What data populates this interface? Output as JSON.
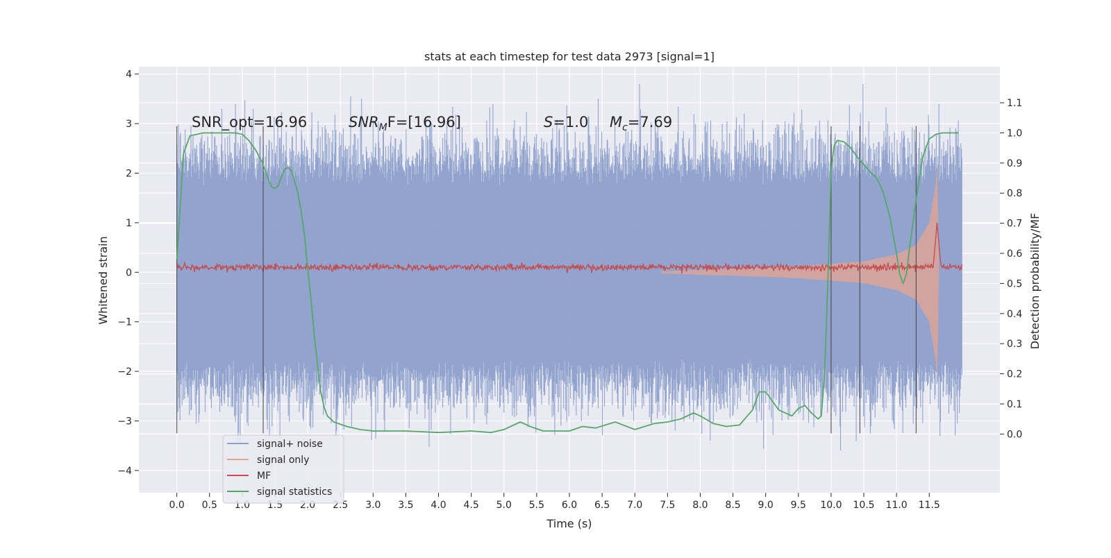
{
  "chart_data": {
    "type": "line",
    "title": "stats at each timestep for test data 2973 [signal=1]",
    "xlabel": "Time (s)",
    "ylabel": "Whitened strain",
    "y2label": "Detection probability/MF",
    "xlim": [
      -0.58,
      12.58
    ],
    "ylim": [
      -4.45,
      4.15
    ],
    "y2lim": [
      -0.195,
      1.22
    ],
    "x_ticks": [
      0.0,
      0.5,
      1.0,
      1.5,
      2.0,
      2.5,
      3.0,
      3.5,
      4.0,
      4.5,
      5.0,
      5.5,
      6.0,
      6.5,
      7.0,
      7.5,
      8.0,
      8.5,
      9.0,
      9.5,
      10.0,
      10.5,
      11.0,
      11.5
    ],
    "x_tick_labels": [
      "0.0",
      "0.5",
      "1.0",
      "1.5",
      "2.0",
      "2.5",
      "3.0",
      "3.5",
      "4.0",
      "4.5",
      "5.0",
      "5.5",
      "6.0",
      "6.5",
      "7.0",
      "7.5",
      "8.0",
      "8.5",
      "9.0",
      "9.5",
      "10.0",
      "10.5",
      "11.0",
      "11.5"
    ],
    "y_ticks": [
      -4,
      -3,
      -2,
      -1,
      0,
      1,
      2,
      3,
      4
    ],
    "y_tick_labels": [
      "−4",
      "−3",
      "−2",
      "−1",
      "0",
      "1",
      "2",
      "3",
      "4"
    ],
    "y2_ticks": [
      0.0,
      0.1,
      0.2,
      0.3,
      0.4,
      0.5,
      0.6,
      0.7,
      0.8,
      0.9,
      1.0,
      1.1
    ],
    "y2_tick_labels": [
      "0.0",
      "0.1",
      "0.2",
      "0.3",
      "0.4",
      "0.5",
      "0.6",
      "0.7",
      "0.8",
      "0.9",
      "1.0",
      "1.1"
    ],
    "grid": true,
    "legend_position": "lower-left",
    "annotations": {
      "snr_opt": "SNR_opt=16.96",
      "snr_mf_prefix": "SNR",
      "snr_mf_sub": "M",
      "snr_mf_suffix": "F=[16.96]",
      "s_sym": "S",
      "s_val": "=1.0",
      "mc_sym": "M",
      "mc_sub": "c",
      "mc_val": "=7.69"
    },
    "vlines_x": [
      0.0,
      1.32,
      10.0,
      10.44,
      11.3
    ],
    "vline_y_range": [
      -3.25,
      2.95
    ],
    "series": [
      {
        "name": "signal+ noise",
        "color": "#8da0cb",
        "axis": "left",
        "x_range": [
          0.0,
          12.0
        ],
        "envelope_amplitude_std": 1.0,
        "envelope_max": 3.8
      },
      {
        "name": "signal only",
        "color": "#e5a48f",
        "axis": "left",
        "chirp_start": 7.4,
        "chirp_merger": 11.62,
        "x": [
          7.4,
          8.0,
          8.5,
          9.0,
          9.5,
          10.0,
          10.5,
          11.0,
          11.3,
          11.5,
          11.6,
          11.62,
          11.65
        ],
        "amplitude": [
          0.02,
          0.05,
          0.07,
          0.09,
          0.12,
          0.17,
          0.22,
          0.36,
          0.55,
          1.0,
          1.8,
          2.2,
          0.0
        ]
      },
      {
        "name": "MF",
        "color": "#c44e52",
        "axis": "left",
        "baseline": 0.1,
        "spike_x": 11.62,
        "spike_peak": 1.0
      },
      {
        "name": "signal statistics",
        "color": "#55a868",
        "axis": "right",
        "x": [
          0.0,
          0.05,
          0.1,
          0.15,
          0.2,
          0.3,
          0.4,
          0.5,
          0.7,
          0.9,
          1.0,
          1.1,
          1.2,
          1.3,
          1.35,
          1.4,
          1.45,
          1.5,
          1.55,
          1.6,
          1.65,
          1.7,
          1.75,
          1.8,
          1.85,
          1.9,
          1.95,
          2.0,
          2.05,
          2.1,
          2.15,
          2.2,
          2.25,
          2.3,
          2.4,
          2.6,
          2.8,
          3.0,
          3.5,
          4.0,
          4.5,
          4.8,
          5.0,
          5.25,
          5.4,
          5.6,
          6.0,
          6.2,
          6.4,
          6.7,
          7.0,
          7.3,
          7.5,
          7.7,
          7.9,
          8.0,
          8.2,
          8.4,
          8.6,
          8.8,
          8.9,
          9.0,
          9.2,
          9.4,
          9.5,
          9.6,
          9.7,
          9.8,
          9.85,
          9.9,
          9.95,
          10.0,
          10.05,
          10.1,
          10.2,
          10.3,
          10.4,
          10.5,
          10.6,
          10.7,
          10.8,
          10.9,
          11.0,
          11.05,
          11.1,
          11.15,
          11.2,
          11.3,
          11.4,
          11.5,
          11.6,
          11.7,
          11.8,
          11.9,
          11.95
        ],
        "y": [
          0.58,
          0.75,
          0.93,
          0.96,
          0.99,
          0.995,
          1.0,
          1.0,
          1.0,
          1.0,
          0.995,
          0.975,
          0.945,
          0.905,
          0.875,
          0.845,
          0.82,
          0.815,
          0.825,
          0.855,
          0.88,
          0.885,
          0.875,
          0.84,
          0.8,
          0.74,
          0.66,
          0.55,
          0.45,
          0.33,
          0.23,
          0.14,
          0.09,
          0.06,
          0.04,
          0.025,
          0.015,
          0.01,
          0.01,
          0.005,
          0.01,
          0.005,
          0.015,
          0.04,
          0.025,
          0.01,
          0.01,
          0.025,
          0.02,
          0.04,
          0.015,
          0.035,
          0.04,
          0.05,
          0.07,
          0.06,
          0.035,
          0.025,
          0.03,
          0.08,
          0.14,
          0.14,
          0.08,
          0.06,
          0.085,
          0.095,
          0.07,
          0.05,
          0.06,
          0.2,
          0.5,
          0.88,
          0.96,
          0.975,
          0.97,
          0.95,
          0.92,
          0.895,
          0.87,
          0.85,
          0.8,
          0.72,
          0.6,
          0.53,
          0.5,
          0.53,
          0.62,
          0.78,
          0.92,
          0.98,
          0.995,
          1.0,
          1.0,
          1.0,
          1.0
        ]
      }
    ]
  }
}
